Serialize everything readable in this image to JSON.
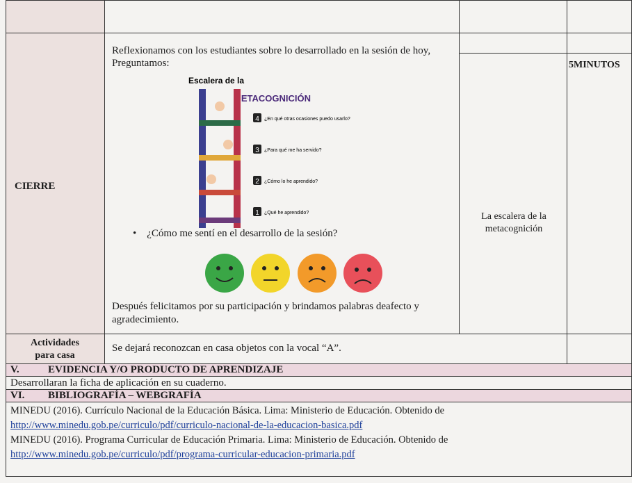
{
  "cierre": {
    "label": "CIERRE",
    "intro": "Reflexionamos con los estudiantes sobre lo desarrollado en la sesión de hoy, Preguntamos:",
    "image": {
      "title_top": "Escalera de la",
      "title_main": "METACOGNICIÓN",
      "steps": [
        {
          "number": "4",
          "text": "¿En qué otras ocasiones puedo usarlo?"
        },
        {
          "number": "3",
          "text": "¿Para qué me ha servido?"
        },
        {
          "number": "2",
          "text": "¿Cómo lo he aprendido?"
        },
        {
          "number": "1",
          "text": "¿Qué he aprendido?"
        }
      ]
    },
    "question": "¿Cómo me sentí en el desarrollo de la sesión?",
    "closing": "Después felicitamos por su participación y brindamos palabras deafecto y agradecimiento.",
    "material": "La escalera de la metacognición",
    "time": "5MINUTOS"
  },
  "homework": {
    "label": "Actividades para casa",
    "text": "Se dejará reconozcan en casa objetos con la vocal “A”."
  },
  "section_v": {
    "number": "V.",
    "title": "EVIDENCIA Y/O PRODUCTO DE APRENDIZAJE",
    "text": "Desarrollaran la ficha de aplicación en su cuaderno."
  },
  "section_vi": {
    "number": "VI.",
    "title": "BIBLIOGRAFÍA – WEBGRAFÍA",
    "references": [
      {
        "text": "MINEDU (2016). Currículo Nacional de la Educación Básica. Lima: Ministerio de Educación. Obtenido de",
        "url": "http://www.minedu.gob.pe/curriculo/pdf/curriculo-nacional-de-la-educacion-basica.pdf"
      },
      {
        "text": "MINEDU (2016). Programa Curricular de Educación Primaria. Lima: Ministerio de Educación. Obtenido de",
        "url": "http://www.minedu.gob.pe/curriculo/pdf/programa-curricular-educacion-primaria.pdf"
      }
    ]
  }
}
